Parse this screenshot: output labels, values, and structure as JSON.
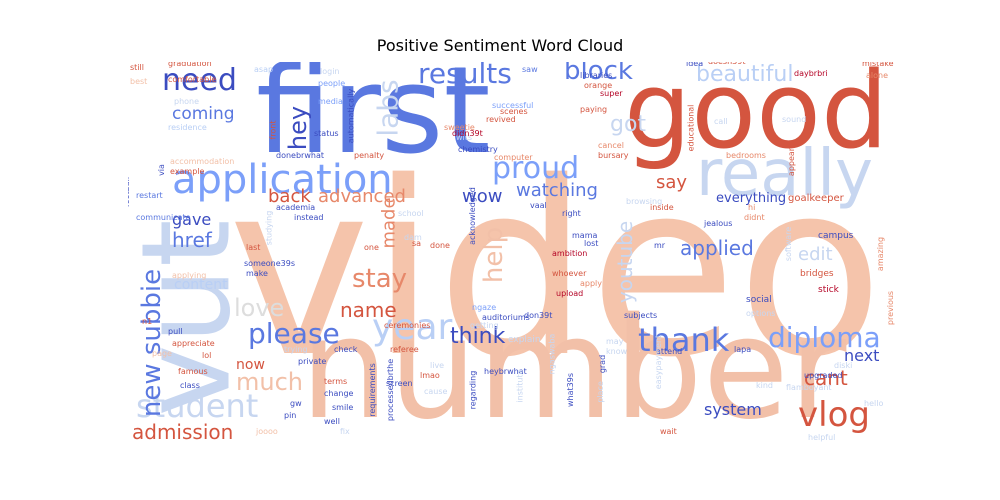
{
  "title": "Positive Sentiment Word Cloud",
  "palette": {
    "blue_dark": "#3b4cc0",
    "blue": "#5a78e0",
    "blue_mid": "#7b9ff9",
    "blue_light": "#b9cff5",
    "blue_pale": "#c7d6f0",
    "peach": "#f2c0a8",
    "peach_light": "#f5cbb3",
    "salmon": "#e7886a",
    "red": "#d4553f",
    "red_dark": "#b40426",
    "grey": "#dddddd"
  },
  "words": [
    {
      "text": "video"
    },
    {
      "text": "number"
    },
    {
      "text": "first"
    },
    {
      "text": "good"
    },
    {
      "text": "vut"
    },
    {
      "text": "really"
    },
    {
      "text": "application"
    },
    {
      "text": "results"
    },
    {
      "text": "need"
    },
    {
      "text": "block"
    },
    {
      "text": "beautiful"
    },
    {
      "text": "proud"
    },
    {
      "text": "labs"
    },
    {
      "text": "got"
    },
    {
      "text": "hey"
    },
    {
      "text": "help"
    },
    {
      "text": "year"
    },
    {
      "text": "diploma"
    },
    {
      "text": "thank"
    },
    {
      "text": "please"
    },
    {
      "text": "student"
    },
    {
      "text": "vlog"
    },
    {
      "text": "admission"
    },
    {
      "text": "new subbie"
    },
    {
      "text": "stay"
    },
    {
      "text": "love"
    },
    {
      "text": "much"
    },
    {
      "text": "youtube"
    },
    {
      "text": "coming"
    },
    {
      "text": "explain"
    },
    {
      "text": "say"
    },
    {
      "text": "back"
    },
    {
      "text": "advanced"
    },
    {
      "text": "wow"
    },
    {
      "text": "watching"
    },
    {
      "text": "gave"
    },
    {
      "text": "href"
    },
    {
      "text": "made"
    },
    {
      "text": "think"
    },
    {
      "text": "name"
    },
    {
      "text": "applied"
    },
    {
      "text": "edit"
    },
    {
      "text": "cant"
    },
    {
      "text": "next"
    },
    {
      "text": "system"
    },
    {
      "text": "now"
    },
    {
      "text": "content"
    },
    {
      "text": "everything"
    },
    {
      "text": "goalkeeper"
    },
    {
      "text": "campus"
    },
    {
      "text": "stick"
    },
    {
      "text": "social"
    },
    {
      "text": "bridges"
    },
    {
      "text": "ambition"
    },
    {
      "text": "whoever"
    },
    {
      "text": "upload"
    },
    {
      "text": "apply"
    },
    {
      "text": "done"
    },
    {
      "text": "lost"
    },
    {
      "text": "mama"
    },
    {
      "text": "mr"
    },
    {
      "text": "ceremonies"
    },
    {
      "text": "ngaze"
    },
    {
      "text": "getting"
    },
    {
      "text": "still"
    },
    {
      "text": "graduation"
    },
    {
      "text": "comfortable"
    },
    {
      "text": "asap"
    },
    {
      "text": "login"
    },
    {
      "text": "saw"
    },
    {
      "text": "idea"
    },
    {
      "text": "doesn39t"
    },
    {
      "text": "mistake"
    },
    {
      "text": "best"
    },
    {
      "text": "people"
    },
    {
      "text": "libraries"
    },
    {
      "text": "orange"
    },
    {
      "text": "daybrbri"
    },
    {
      "text": "alone"
    },
    {
      "text": "phone"
    },
    {
      "text": "media"
    },
    {
      "text": "successful"
    },
    {
      "text": "paying"
    },
    {
      "text": "super"
    },
    {
      "text": "residence"
    },
    {
      "text": "automatically"
    },
    {
      "text": "scenes"
    },
    {
      "text": "revived"
    },
    {
      "text": "call"
    },
    {
      "text": "sound"
    },
    {
      "text": "status"
    },
    {
      "text": "sweetie"
    },
    {
      "text": "wits"
    },
    {
      "text": "didn39t"
    },
    {
      "text": "educational"
    },
    {
      "text": "front"
    },
    {
      "text": "chemistry"
    },
    {
      "text": "cancel"
    },
    {
      "text": "bursary"
    },
    {
      "text": "bedrooms"
    },
    {
      "text": "appear"
    },
    {
      "text": "donebrwhat"
    },
    {
      "text": "penalty"
    },
    {
      "text": "computer"
    },
    {
      "text": "accommodation"
    },
    {
      "text": "football"
    },
    {
      "text": "via"
    },
    {
      "text": "example"
    },
    {
      "text": "restart"
    },
    {
      "text": "vaal"
    },
    {
      "text": "browsing"
    },
    {
      "text": "inside"
    },
    {
      "text": "hi"
    },
    {
      "text": "didnt"
    },
    {
      "text": "academia"
    },
    {
      "text": "acknowledged"
    },
    {
      "text": "school"
    },
    {
      "text": "communicate"
    },
    {
      "text": "instead"
    },
    {
      "text": "right"
    },
    {
      "text": "jealous"
    },
    {
      "text": "studying"
    },
    {
      "text": "last"
    },
    {
      "text": "one"
    },
    {
      "text": "sa"
    },
    {
      "text": "dam"
    },
    {
      "text": "make"
    },
    {
      "text": "someone39s"
    },
    {
      "text": "applying"
    },
    {
      "text": "software"
    },
    {
      "text": "amazing"
    },
    {
      "text": "previous"
    },
    {
      "text": "options"
    },
    {
      "text": "subjects"
    },
    {
      "text": "don39t"
    },
    {
      "text": "auditoriums"
    },
    {
      "text": "pull"
    },
    {
      "text": "appreciate"
    },
    {
      "text": "page"
    },
    {
      "text": "lol"
    },
    {
      "text": "famous"
    },
    {
      "text": "class"
    },
    {
      "text": "trying"
    },
    {
      "text": "check"
    },
    {
      "text": "private"
    },
    {
      "text": "gw"
    },
    {
      "text": "pin"
    },
    {
      "text": "change"
    },
    {
      "text": "smile"
    },
    {
      "text": "well"
    },
    {
      "text": "fix"
    },
    {
      "text": "joooo"
    },
    {
      "text": "terms"
    },
    {
      "text": "referee"
    },
    {
      "text": "lmao"
    },
    {
      "text": "screen"
    },
    {
      "text": "requirements"
    },
    {
      "text": "processedbrthe"
    },
    {
      "text": "live"
    },
    {
      "text": "cause"
    },
    {
      "text": "regarding"
    },
    {
      "text": "heybrwhat"
    },
    {
      "text": "institute"
    },
    {
      "text": "ngaswaba"
    },
    {
      "text": "what39s"
    },
    {
      "text": "grad"
    },
    {
      "text": "place"
    },
    {
      "text": "may"
    },
    {
      "text": "know"
    },
    {
      "text": "attend"
    },
    {
      "text": "easypayment"
    },
    {
      "text": "wait"
    },
    {
      "text": "upgraded"
    },
    {
      "text": "kind"
    },
    {
      "text": "lapa"
    },
    {
      "text": "diski"
    },
    {
      "text": "flamboyant"
    },
    {
      "text": "helpful"
    },
    {
      "text": "hello"
    },
    {
      "text": "n1"
    }
  ]
}
